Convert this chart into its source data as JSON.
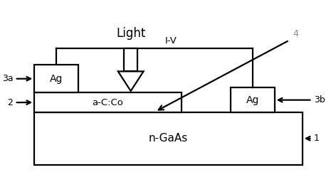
{
  "bg_color": "#ffffff",
  "line_color": "#000000",
  "gray_color": "#888888",
  "fig_width": 4.72,
  "fig_height": 2.56,
  "dpi": 100,
  "xlim": [
    0,
    10
  ],
  "ylim": [
    0,
    5.5
  ]
}
